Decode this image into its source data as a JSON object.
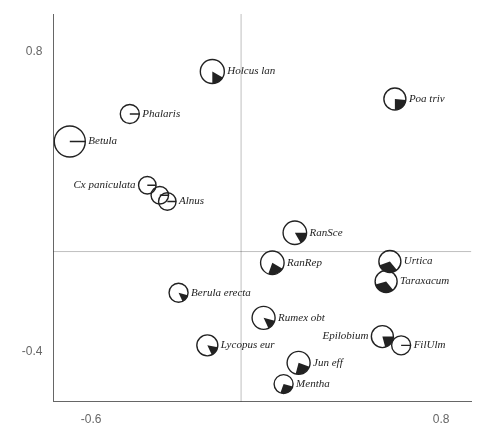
{
  "chart_data": {
    "type": "scatter",
    "xlim": [
      -0.75,
      0.92
    ],
    "ylim": [
      -0.6,
      0.95
    ],
    "xticks": [
      -0.6,
      0.8
    ],
    "yticks": [
      -0.4,
      0.8
    ],
    "grid": false,
    "hline": 0,
    "vline": 0,
    "labels": [
      "Betula",
      "Phalaris",
      "Holcus lan",
      "Poa triv",
      "Cx paniculata",
      "Alnus",
      "RanSce",
      "RanRep",
      "Urtica",
      "Taraxacum",
      "Berula erecta",
      "Rumex obt",
      "Epilobium",
      "FilUlm",
      "Lycopus eur",
      "Jun eff",
      "Mentha",
      null
    ],
    "x": [
      -0.685,
      -0.445,
      -0.115,
      0.615,
      -0.375,
      -0.295,
      0.215,
      0.125,
      0.595,
      0.58,
      -0.25,
      0.09,
      0.565,
      0.64,
      -0.135,
      0.23,
      0.17,
      -0.325
    ],
    "values": [
      0.44,
      0.55,
      0.72,
      0.61,
      0.265,
      0.2,
      0.075,
      -0.045,
      -0.04,
      -0.12,
      -0.165,
      -0.265,
      -0.34,
      -0.375,
      -0.375,
      -0.445,
      -0.53,
      0.225
    ],
    "radius": [
      0.062,
      0.038,
      0.048,
      0.044,
      0.035,
      0.035,
      0.047,
      0.047,
      0.044,
      0.044,
      0.038,
      0.046,
      0.044,
      0.038,
      0.042,
      0.046,
      0.038,
      0.035
    ],
    "wedge_start": [
      0,
      0,
      270,
      270,
      0,
      0,
      300,
      250,
      200,
      195,
      295,
      295,
      285,
      0,
      295,
      255,
      250,
      0
    ],
    "wedge_end": [
      0,
      0,
      330,
      355,
      0,
      0,
      360,
      330,
      310,
      310,
      345,
      345,
      360,
      0,
      350,
      340,
      345,
      0
    ],
    "has_line": [
      true,
      true,
      false,
      false,
      true,
      true,
      false,
      false,
      false,
      false,
      false,
      false,
      false,
      true,
      false,
      false,
      false,
      true
    ]
  }
}
